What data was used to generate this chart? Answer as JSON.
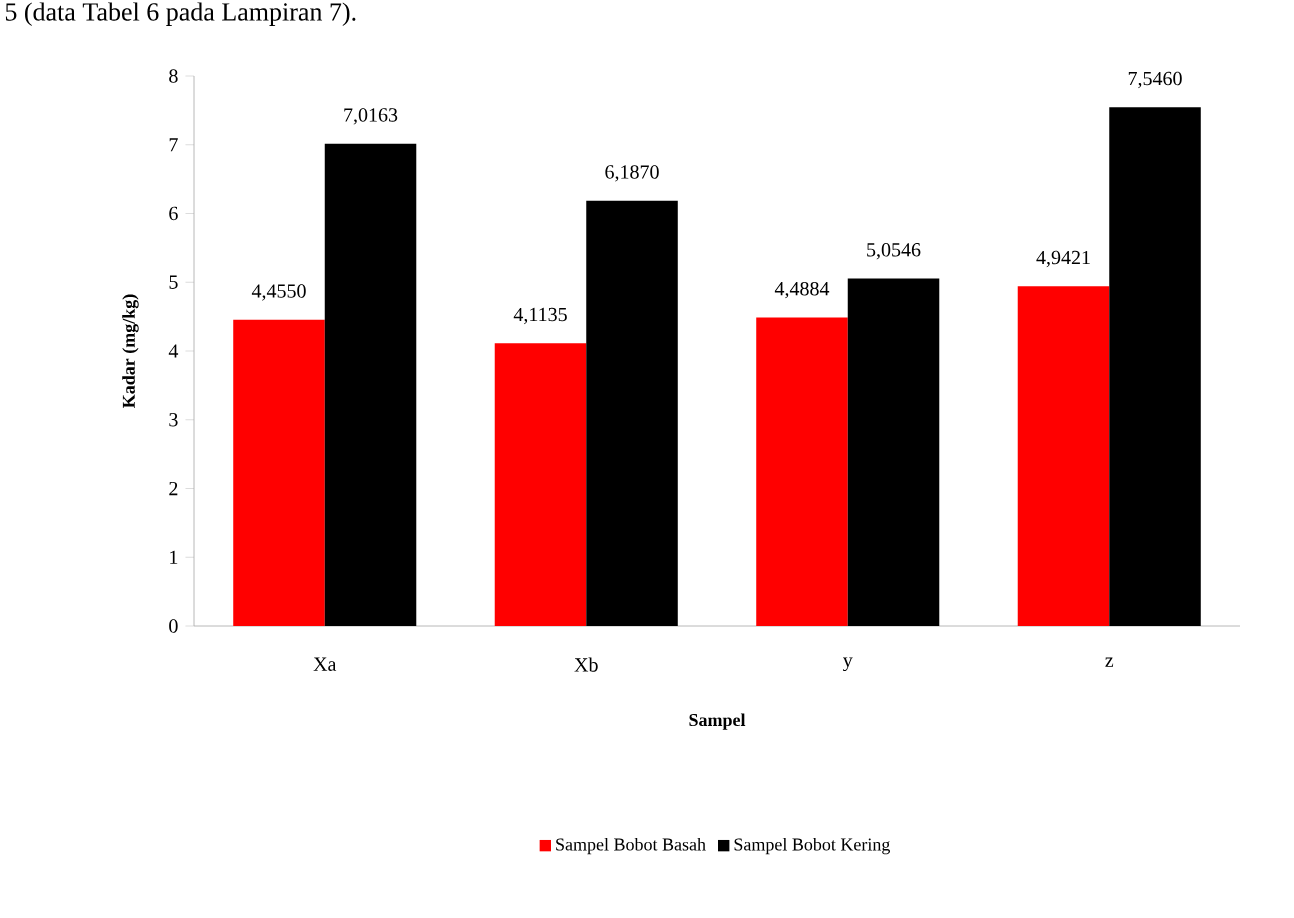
{
  "chart_data": {
    "type": "bar",
    "annotations": [
      "5 (data Tabel 6 pada Lampiran 7)."
    ],
    "xlabel": "Sampel",
    "ylabel": "Kadar (mg/kg)",
    "categories": [
      "Xa",
      "Xb",
      "y",
      "z"
    ],
    "series": [
      {
        "name": "Sampel Bobot Basah",
        "color": "#ff0000",
        "values": [
          4.455,
          4.1135,
          4.4884,
          4.9421
        ],
        "value_labels": [
          "4,4550",
          "4,1135",
          "4,4884",
          "4,9421"
        ]
      },
      {
        "name": "Sampel Bobot Kering",
        "color": "#000000",
        "values": [
          7.0163,
          6.187,
          5.0546,
          7.546
        ],
        "value_labels": [
          "7,0163",
          "6,1870",
          "5,0546",
          "7,5460"
        ]
      }
    ],
    "ylim": [
      0,
      8
    ],
    "yticks": [
      0,
      1,
      2,
      3,
      4,
      5,
      6,
      7,
      8
    ],
    "legend": "bottom"
  }
}
